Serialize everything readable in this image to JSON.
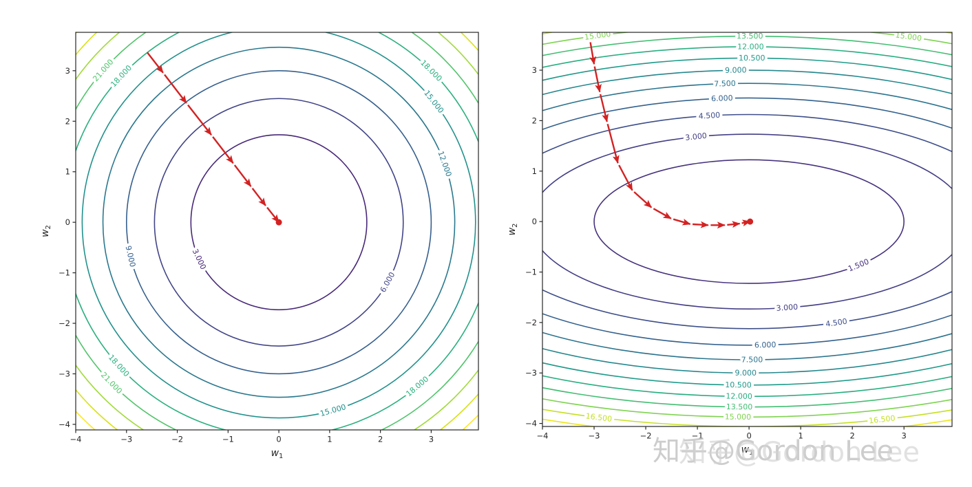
{
  "figure": {
    "background": "#ffffff",
    "watermark": {
      "text": "知乎@Gordon Lee",
      "color": "#bdbdbd"
    }
  },
  "chart_data": [
    {
      "type": "contour",
      "subplot": "left",
      "surface": "L(w1,w2) = w1^2 + w2^2 (isotropic bowl, gradient descent goes straight to minimum)",
      "xlabel": {
        "base": "w",
        "sub": "1"
      },
      "ylabel": {
        "base": "w",
        "sub": "2"
      },
      "x_ticks": [
        -4,
        -3,
        -2,
        -1,
        0,
        1,
        2,
        3
      ],
      "y_ticks": [
        -4,
        -3,
        -2,
        -1,
        0,
        1,
        2,
        3
      ],
      "x_range": [
        -4.0,
        3.93
      ],
      "y_range": [
        -4.11,
        3.76
      ],
      "grid": false,
      "rx_scale": 1,
      "ry_scale": 1,
      "contours": [
        {
          "level": 3,
          "label": "3.000",
          "color": "#482878",
          "label_angles": [
            205
          ]
        },
        {
          "level": 6,
          "label": "6.000",
          "color": "#414487",
          "label_angles": [
            331
          ]
        },
        {
          "level": 9,
          "label": "9.000",
          "color": "#355f8d",
          "label_angles": [
            193
          ]
        },
        {
          "level": 12,
          "label": "12.000",
          "color": "#2a788e",
          "label_angles": [
            19.5
          ]
        },
        {
          "level": 15,
          "label": "15.000",
          "color": "#21918c",
          "label_angles": [
            38,
            286
          ]
        },
        {
          "level": 18,
          "label": "18.000",
          "color": "#2ab07f",
          "label_angles": [
            137,
            45,
            222,
            310
          ]
        },
        {
          "level": 21,
          "label": "21.000",
          "color": "#50c46a",
          "label_angles": [
            139,
            224
          ]
        },
        {
          "level": 24,
          "label": "",
          "color": "#a0da39",
          "label_angles": []
        },
        {
          "level": 27,
          "label": "",
          "color": "#d8e219",
          "label_angles": []
        },
        {
          "level": 30,
          "label": "",
          "color": "#fde725",
          "label_angles": []
        }
      ],
      "minimum": [
        0,
        0
      ],
      "descent_path": {
        "color": "#d32222",
        "points": [
          [
            -2.62,
            3.4
          ],
          [
            -2.28,
            2.96
          ],
          [
            -1.82,
            2.36
          ],
          [
            -1.33,
            1.73
          ],
          [
            -0.9,
            1.17
          ],
          [
            -0.55,
            0.71
          ],
          [
            -0.26,
            0.33
          ],
          [
            0.0,
            0.0
          ]
        ]
      }
    },
    {
      "type": "contour",
      "subplot": "right",
      "surface": "L(w1,w2) = w1^2/6 + w2^2 (elongated valley, gradient descent bends then crawls along valley floor)",
      "xlabel": {
        "base": "w",
        "sub": "1"
      },
      "ylabel": {
        "base": "w",
        "sub": "2"
      },
      "x_ticks": [
        -4,
        -3,
        -2,
        -1,
        0,
        1,
        2,
        3
      ],
      "y_ticks": [
        -4,
        -3,
        -2,
        -1,
        0,
        1,
        2,
        3
      ],
      "x_range": [
        -4.0,
        3.93
      ],
      "y_range": [
        -4.06,
        3.75
      ],
      "grid": false,
      "rx_scale": 2.449,
      "ry_scale": 1,
      "contours": [
        {
          "level": 1.5,
          "label": "1.500",
          "color": "#46327e",
          "label_angles": [
            -45
          ]
        },
        {
          "level": 3,
          "label": "3.000",
          "color": "#433e85",
          "label_angles": [
            104,
            -80
          ]
        },
        {
          "level": 4.5,
          "label": "4.500",
          "color": "#3d4e8a",
          "label_angles": [
            98.5,
            -71
          ]
        },
        {
          "level": 6,
          "label": "6.000",
          "color": "#34618d",
          "label_angles": [
            95,
            -87
          ]
        },
        {
          "level": 7.5,
          "label": "7.500",
          "color": "#2b748e",
          "label_angles": [
            94,
            -89.5
          ]
        },
        {
          "level": 9,
          "label": "9.000",
          "color": "#24878e",
          "label_angles": [
            92,
            -90.5
          ]
        },
        {
          "level": 10.5,
          "label": "10.500",
          "color": "#1f9a8a",
          "label_angles": [
            89.6,
            -91.5
          ]
        },
        {
          "level": 12,
          "label": "12.000",
          "color": "#28ae80",
          "label_angles": [
            89.8,
            -91.3
          ]
        },
        {
          "level": 13.5,
          "label": "13.500",
          "color": "#42be71",
          "label_angles": [
            89.9,
            -91.2
          ]
        },
        {
          "level": 15,
          "label": "15.000",
          "color": "#7ed34f",
          "label_angles": [
            108,
            71,
            -91.3
          ]
        },
        {
          "level": 16.5,
          "label": "16.500",
          "color": "#c5e021",
          "label_angles": [
            -107,
            -75
          ]
        },
        {
          "level": 18,
          "label": "",
          "color": "#ece51b",
          "label_angles": []
        }
      ],
      "minimum": [
        0,
        0
      ],
      "descent_path": {
        "color": "#d32222",
        "points": [
          [
            -3.08,
            3.6
          ],
          [
            -3.0,
            3.12
          ],
          [
            -2.89,
            2.57
          ],
          [
            -2.75,
            1.98
          ],
          [
            -2.54,
            1.16
          ],
          [
            -2.26,
            0.62
          ],
          [
            -1.89,
            0.28
          ],
          [
            -1.51,
            0.06
          ],
          [
            -1.14,
            -0.05
          ],
          [
            -0.79,
            -0.07
          ],
          [
            -0.47,
            -0.07
          ],
          [
            -0.18,
            -0.04
          ],
          [
            0.02,
            0.0
          ]
        ]
      }
    }
  ]
}
